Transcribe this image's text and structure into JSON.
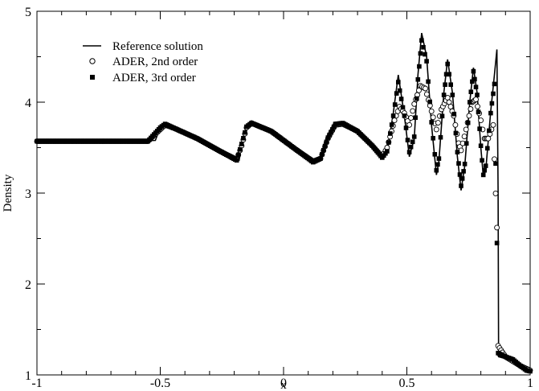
{
  "chart_data": {
    "type": "line",
    "xlabel": "x",
    "ylabel": "Density",
    "xlim": [
      -1,
      1
    ],
    "ylim": [
      1,
      5
    ],
    "x_ticks": [
      "-1",
      "-0.5",
      "0",
      "0.5",
      "1"
    ],
    "x_tick_values": [
      -1,
      -0.5,
      0,
      0.5,
      1
    ],
    "y_ticks": [
      "1",
      "2",
      "3",
      "4",
      "5"
    ],
    "y_tick_values": [
      1,
      2,
      3,
      4,
      5
    ],
    "grid": false,
    "legend_position": "top-left",
    "series": [
      {
        "name": "Reference solution",
        "style": "solid line",
        "color": "#000000",
        "points": [
          [
            -1.0,
            3.57
          ],
          [
            -0.6,
            3.57
          ],
          [
            -0.52,
            3.58
          ],
          [
            -0.5,
            3.72
          ],
          [
            -0.48,
            3.76
          ],
          [
            -0.44,
            3.71
          ],
          [
            -0.35,
            3.6
          ],
          [
            -0.25,
            3.45
          ],
          [
            -0.2,
            3.37
          ],
          [
            -0.18,
            3.36
          ],
          [
            -0.17,
            3.55
          ],
          [
            -0.15,
            3.74
          ],
          [
            -0.13,
            3.77
          ],
          [
            -0.05,
            3.68
          ],
          [
            0.05,
            3.48
          ],
          [
            0.12,
            3.34
          ],
          [
            0.15,
            3.38
          ],
          [
            0.18,
            3.62
          ],
          [
            0.21,
            3.76
          ],
          [
            0.24,
            3.77
          ],
          [
            0.3,
            3.68
          ],
          [
            0.36,
            3.52
          ],
          [
            0.4,
            3.39
          ],
          [
            0.42,
            3.45
          ],
          [
            0.445,
            3.88
          ],
          [
            0.465,
            4.3
          ],
          [
            0.49,
            3.85
          ],
          [
            0.51,
            3.4
          ],
          [
            0.53,
            3.6
          ],
          [
            0.545,
            4.3
          ],
          [
            0.56,
            4.76
          ],
          [
            0.58,
            4.5
          ],
          [
            0.6,
            3.75
          ],
          [
            0.62,
            3.2
          ],
          [
            0.63,
            3.35
          ],
          [
            0.65,
            4.1
          ],
          [
            0.665,
            4.47
          ],
          [
            0.685,
            4.1
          ],
          [
            0.705,
            3.4
          ],
          [
            0.72,
            3.03
          ],
          [
            0.735,
            3.3
          ],
          [
            0.755,
            4.0
          ],
          [
            0.77,
            4.38
          ],
          [
            0.785,
            4.1
          ],
          [
            0.8,
            3.5
          ],
          [
            0.81,
            3.18
          ],
          [
            0.82,
            3.25
          ],
          [
            0.84,
            3.9
          ],
          [
            0.855,
            4.3
          ],
          [
            0.865,
            4.58
          ],
          [
            0.87,
            3.0
          ],
          [
            0.872,
            1.2
          ],
          [
            0.9,
            1.18
          ],
          [
            0.93,
            1.15
          ],
          [
            0.96,
            1.08
          ],
          [
            0.985,
            1.04
          ],
          [
            1.0,
            1.04
          ]
        ]
      },
      {
        "name": "ADER, 2nd order",
        "style": "open circles",
        "color": "#000000",
        "points": [
          [
            -1.0,
            3.57
          ],
          [
            -0.55,
            3.57
          ],
          [
            -0.5,
            3.7
          ],
          [
            -0.48,
            3.75
          ],
          [
            -0.44,
            3.71
          ],
          [
            -0.35,
            3.6
          ],
          [
            -0.25,
            3.45
          ],
          [
            -0.19,
            3.37
          ],
          [
            -0.17,
            3.52
          ],
          [
            -0.15,
            3.72
          ],
          [
            -0.13,
            3.77
          ],
          [
            -0.05,
            3.68
          ],
          [
            0.05,
            3.48
          ],
          [
            0.12,
            3.35
          ],
          [
            0.15,
            3.38
          ],
          [
            0.18,
            3.6
          ],
          [
            0.21,
            3.75
          ],
          [
            0.24,
            3.76
          ],
          [
            0.3,
            3.68
          ],
          [
            0.36,
            3.52
          ],
          [
            0.4,
            3.4
          ],
          [
            0.42,
            3.5
          ],
          [
            0.45,
            3.8
          ],
          [
            0.47,
            3.95
          ],
          [
            0.49,
            3.88
          ],
          [
            0.51,
            3.75
          ],
          [
            0.53,
            3.98
          ],
          [
            0.555,
            4.18
          ],
          [
            0.575,
            4.15
          ],
          [
            0.6,
            3.9
          ],
          [
            0.62,
            3.7
          ],
          [
            0.64,
            3.92
          ],
          [
            0.665,
            4.05
          ],
          [
            0.69,
            3.85
          ],
          [
            0.71,
            3.55
          ],
          [
            0.72,
            3.47
          ],
          [
            0.74,
            3.7
          ],
          [
            0.765,
            4.0
          ],
          [
            0.78,
            4.03
          ],
          [
            0.8,
            3.8
          ],
          [
            0.815,
            3.6
          ],
          [
            0.83,
            3.6
          ],
          [
            0.85,
            3.75
          ],
          [
            0.865,
            2.62
          ],
          [
            0.87,
            1.32
          ],
          [
            0.9,
            1.2
          ],
          [
            0.93,
            1.15
          ],
          [
            0.96,
            1.1
          ],
          [
            1.0,
            1.05
          ]
        ]
      },
      {
        "name": "ADER, 3rd order",
        "style": "filled squares",
        "color": "#000000",
        "points": [
          [
            -1.0,
            3.57
          ],
          [
            -0.55,
            3.57
          ],
          [
            -0.5,
            3.72
          ],
          [
            -0.48,
            3.76
          ],
          [
            -0.44,
            3.71
          ],
          [
            -0.35,
            3.6
          ],
          [
            -0.25,
            3.45
          ],
          [
            -0.19,
            3.36
          ],
          [
            -0.17,
            3.54
          ],
          [
            -0.15,
            3.73
          ],
          [
            -0.13,
            3.77
          ],
          [
            -0.05,
            3.68
          ],
          [
            0.05,
            3.48
          ],
          [
            0.12,
            3.34
          ],
          [
            0.15,
            3.38
          ],
          [
            0.18,
            3.61
          ],
          [
            0.21,
            3.76
          ],
          [
            0.24,
            3.77
          ],
          [
            0.3,
            3.68
          ],
          [
            0.36,
            3.52
          ],
          [
            0.4,
            3.39
          ],
          [
            0.42,
            3.46
          ],
          [
            0.445,
            3.85
          ],
          [
            0.465,
            4.22
          ],
          [
            0.49,
            3.85
          ],
          [
            0.51,
            3.45
          ],
          [
            0.53,
            3.62
          ],
          [
            0.545,
            4.25
          ],
          [
            0.56,
            4.68
          ],
          [
            0.58,
            4.45
          ],
          [
            0.6,
            3.78
          ],
          [
            0.62,
            3.25
          ],
          [
            0.63,
            3.38
          ],
          [
            0.65,
            4.08
          ],
          [
            0.665,
            4.42
          ],
          [
            0.685,
            4.08
          ],
          [
            0.705,
            3.45
          ],
          [
            0.72,
            3.08
          ],
          [
            0.735,
            3.32
          ],
          [
            0.755,
            4.0
          ],
          [
            0.77,
            4.34
          ],
          [
            0.785,
            4.08
          ],
          [
            0.8,
            3.52
          ],
          [
            0.81,
            3.2
          ],
          [
            0.82,
            3.3
          ],
          [
            0.84,
            3.88
          ],
          [
            0.855,
            4.2
          ],
          [
            0.865,
            2.45
          ],
          [
            0.87,
            1.24
          ],
          [
            0.9,
            1.2
          ],
          [
            0.93,
            1.17
          ],
          [
            0.96,
            1.1
          ],
          [
            0.985,
            1.05
          ],
          [
            1.0,
            1.04
          ]
        ]
      }
    ]
  }
}
